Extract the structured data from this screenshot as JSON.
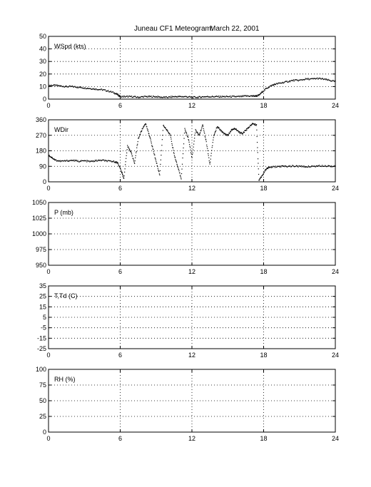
{
  "page": {
    "title": "Juneau CF1 Meteogram:",
    "date": "March 22, 2001"
  },
  "chart_data": [
    {
      "type": "scatter",
      "label": "WSpd (kts)",
      "x_ticks": [
        "0",
        "6",
        "12",
        "18",
        "24"
      ],
      "y_ticks": [
        "0",
        "10",
        "20",
        "30",
        "40",
        "50"
      ],
      "xlim": [
        0,
        24
      ],
      "ylim": [
        0,
        50
      ],
      "grid": true,
      "series": [
        {
          "x": [
            0,
            0.5,
            1,
            1.5,
            2,
            2.5,
            3,
            3.5,
            4,
            4.5,
            5,
            5.5,
            5.8,
            6,
            6.5,
            7,
            7.5,
            8,
            8.5,
            9,
            9.5,
            10,
            10.5,
            11,
            11.5,
            12,
            12.5,
            13,
            13.5,
            14,
            14.5,
            15,
            15.5,
            16,
            16.5,
            17,
            17.3,
            17.6,
            17.9,
            18.3,
            18.7,
            19,
            19.5,
            20,
            20.5,
            21,
            21.5,
            22,
            22.5,
            23,
            23.5,
            24
          ],
          "y": [
            11,
            11,
            10.5,
            10,
            10,
            9.5,
            9,
            8.5,
            8,
            7.5,
            6.5,
            5,
            3.5,
            2,
            2,
            2,
            1.5,
            2,
            2,
            2,
            1.5,
            1.5,
            2,
            2,
            2,
            1.5,
            1.5,
            2,
            2,
            2,
            2,
            2,
            2,
            2,
            2.5,
            2.5,
            2.5,
            3,
            6,
            9,
            11,
            12,
            13,
            14,
            15,
            15,
            16,
            16,
            16.5,
            16,
            15,
            14
          ]
        }
      ]
    },
    {
      "type": "scatter",
      "label": "WDir",
      "x_ticks": [
        "0",
        "6",
        "12",
        "18",
        "24"
      ],
      "y_ticks": [
        "0",
        "90",
        "180",
        "270",
        "360"
      ],
      "xlim": [
        0,
        24
      ],
      "ylim": [
        0,
        360
      ],
      "grid": true,
      "series": [
        {
          "x": [
            0,
            0.3,
            0.6,
            1,
            1.5,
            2,
            2.5,
            3,
            3.5,
            4,
            4.5,
            5,
            5.5,
            5.8,
            6.1,
            6.3,
            6.6,
            6.9,
            7.2,
            7.5,
            7.8,
            8.1,
            8.4,
            8.7,
            9,
            9.3,
            9.6,
            9.9,
            10.2,
            10.5,
            10.8,
            11.1,
            11.4,
            11.7,
            12,
            12.3,
            12.6,
            12.9,
            13.2,
            13.5,
            13.8,
            14.1,
            14.4,
            14.7,
            15,
            15.3,
            15.6,
            15.9,
            16.2,
            16.5,
            16.8,
            17.1,
            17.4,
            17.6,
            17.9,
            18.2,
            18.5,
            19,
            19.5,
            20,
            20.5,
            21,
            21.5,
            22,
            22.5,
            23,
            23.5,
            24
          ],
          "y": [
            155,
            140,
            125,
            120,
            122,
            125,
            120,
            122,
            118,
            123,
            125,
            120,
            118,
            110,
            60,
            20,
            210,
            170,
            110,
            250,
            300,
            340,
            280,
            200,
            120,
            40,
            330,
            300,
            270,
            160,
            90,
            20,
            310,
            250,
            140,
            300,
            270,
            330,
            230,
            100,
            260,
            320,
            300,
            280,
            270,
            300,
            310,
            290,
            280,
            300,
            320,
            340,
            330,
            10,
            40,
            75,
            85,
            88,
            90,
            90,
            92,
            90,
            88,
            90,
            92,
            94,
            92,
            90
          ]
        }
      ]
    },
    {
      "type": "scatter",
      "label": "P (mb)",
      "x_ticks": [
        "0",
        "6",
        "12",
        "18",
        "24"
      ],
      "y_ticks": [
        "950",
        "975",
        "1000",
        "1025",
        "1050"
      ],
      "xlim": [
        0,
        24
      ],
      "ylim": [
        950,
        1050
      ],
      "grid": true,
      "series": []
    },
    {
      "type": "scatter",
      "label": "T,Td (C)",
      "x_ticks": [
        "0",
        "6",
        "12",
        "18",
        "24"
      ],
      "y_ticks": [
        "-25",
        "-15",
        "-5",
        "5",
        "15",
        "25",
        "35"
      ],
      "xlim": [
        0,
        24
      ],
      "ylim": [
        -25,
        35
      ],
      "grid": true,
      "series": []
    },
    {
      "type": "scatter",
      "label": "RH (%)",
      "x_ticks": [
        "0",
        "6",
        "12",
        "18",
        "24"
      ],
      "y_ticks": [
        "0",
        "25",
        "50",
        "75",
        "100"
      ],
      "xlim": [
        0,
        24
      ],
      "ylim": [
        0,
        100
      ],
      "grid": true,
      "series": []
    }
  ]
}
